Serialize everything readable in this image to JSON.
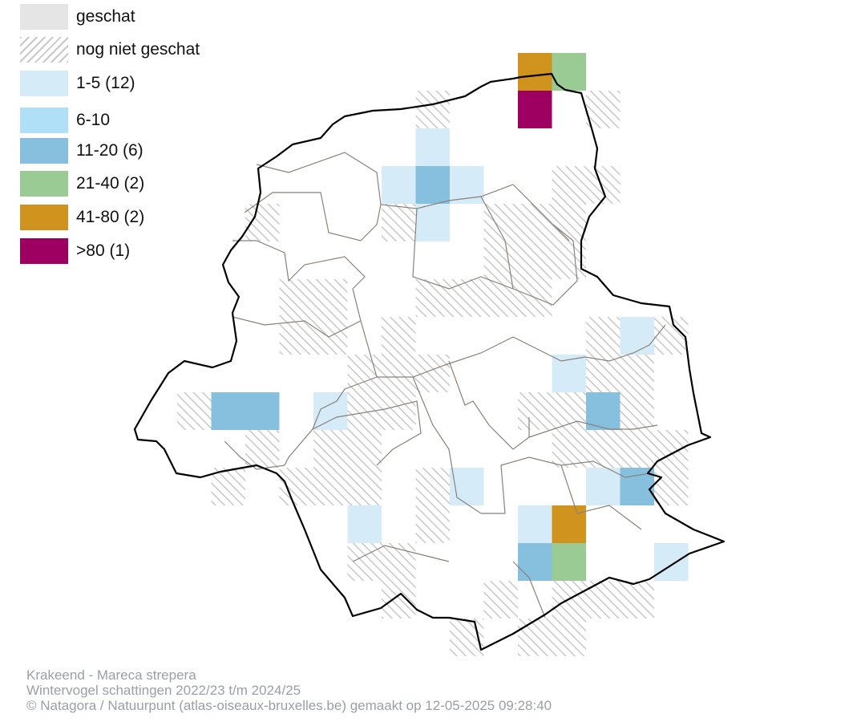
{
  "legend": {
    "items": [
      {
        "label": "geschat",
        "color": "#e5e5e5",
        "pattern": "solid"
      },
      {
        "label": "nog niet geschat",
        "color": "#d0d0d0",
        "pattern": "hatch"
      },
      {
        "label": "1-5 (12)",
        "color": "#d6ebf8",
        "pattern": "solid"
      },
      {
        "label": "6-10",
        "color": "#b0e0f7",
        "pattern": "solid"
      },
      {
        "label": "11-20 (6)",
        "color": "#86c0de",
        "pattern": "solid"
      },
      {
        "label": "21-40 (2)",
        "color": "#9bcb94",
        "pattern": "solid"
      },
      {
        "label": "41-80 (2)",
        "color": "#d0941e",
        "pattern": "solid"
      },
      {
        "label": ">80 (1)",
        "color": "#9e0062",
        "pattern": "solid"
      }
    ]
  },
  "grid_cells": [
    {
      "col": 9,
      "row": 3,
      "class": "1-5"
    },
    {
      "col": 8,
      "row": 4,
      "class": "1-5"
    },
    {
      "col": 9,
      "row": 4,
      "class": "11-20"
    },
    {
      "col": 10,
      "row": 4,
      "class": "1-5"
    },
    {
      "col": 9,
      "row": 5,
      "class": "1-5"
    },
    {
      "col": 12,
      "row": 1,
      "class": "41-80"
    },
    {
      "col": 13,
      "row": 1,
      "class": "21-40"
    },
    {
      "col": 12,
      "row": 2,
      "class": ">80"
    },
    {
      "col": 3,
      "row": 10,
      "class": "11-20"
    },
    {
      "col": 4,
      "row": 10,
      "class": "11-20"
    },
    {
      "col": 6,
      "row": 10,
      "class": "1-5"
    },
    {
      "col": 15,
      "row": 8,
      "class": "1-5"
    },
    {
      "col": 13,
      "row": 9,
      "class": "1-5"
    },
    {
      "col": 14,
      "row": 10,
      "class": "11-20"
    },
    {
      "col": 10,
      "row": 12,
      "class": "1-5"
    },
    {
      "col": 14,
      "row": 12,
      "class": "1-5"
    },
    {
      "col": 15,
      "row": 12,
      "class": "11-20"
    },
    {
      "col": 7,
      "row": 13,
      "class": "1-5"
    },
    {
      "col": 12,
      "row": 13,
      "class": "1-5"
    },
    {
      "col": 13,
      "row": 13,
      "class": "41-80"
    },
    {
      "col": 12,
      "row": 14,
      "class": "11-20"
    },
    {
      "col": 13,
      "row": 14,
      "class": "21-40"
    },
    {
      "col": 16,
      "row": 14,
      "class": "1-5"
    }
  ],
  "hatched_cells": [
    [
      9,
      2
    ],
    [
      14,
      2
    ],
    [
      13,
      4
    ],
    [
      14,
      4
    ],
    [
      4,
      5
    ],
    [
      8,
      5
    ],
    [
      11,
      5
    ],
    [
      12,
      5
    ],
    [
      13,
      5
    ],
    [
      11,
      6
    ],
    [
      12,
      6
    ],
    [
      13,
      6
    ],
    [
      5,
      7
    ],
    [
      6,
      7
    ],
    [
      9,
      7
    ],
    [
      10,
      7
    ],
    [
      11,
      7
    ],
    [
      12,
      7
    ],
    [
      5,
      8
    ],
    [
      6,
      8
    ],
    [
      8,
      8
    ],
    [
      14,
      8
    ],
    [
      16,
      8
    ],
    [
      7,
      9
    ],
    [
      8,
      9
    ],
    [
      9,
      9
    ],
    [
      14,
      9
    ],
    [
      15,
      9
    ],
    [
      2,
      10
    ],
    [
      7,
      10
    ],
    [
      8,
      10
    ],
    [
      12,
      10
    ],
    [
      13,
      10
    ],
    [
      15,
      10
    ],
    [
      4,
      11
    ],
    [
      6,
      11
    ],
    [
      7,
      11
    ],
    [
      13,
      11
    ],
    [
      14,
      11
    ],
    [
      15,
      11
    ],
    [
      16,
      11
    ],
    [
      3,
      12
    ],
    [
      5,
      12
    ],
    [
      6,
      12
    ],
    [
      7,
      12
    ],
    [
      9,
      12
    ],
    [
      16,
      12
    ],
    [
      9,
      13
    ],
    [
      7,
      14
    ],
    [
      8,
      14
    ],
    [
      14,
      15
    ],
    [
      15,
      15
    ],
    [
      8,
      15
    ],
    [
      11,
      15
    ],
    [
      13,
      15
    ],
    [
      10,
      16
    ],
    [
      12,
      16
    ],
    [
      13,
      16
    ]
  ],
  "caption": {
    "line1": "Krakeend - Mareca strepera",
    "line2": "Wintervogel schattingen 2022/23 t/m 2024/25",
    "line3": "© Natagora / Natuurpunt (atlas-oiseaux-bruxelles.be) gemaakt op 12-05-2025 09:28:40"
  }
}
